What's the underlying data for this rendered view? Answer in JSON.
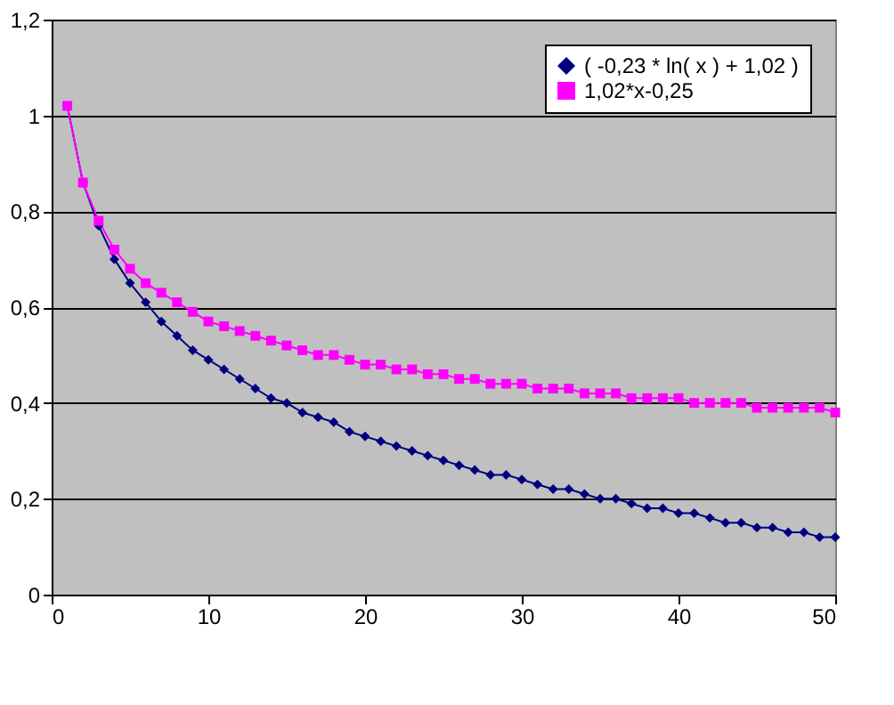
{
  "chart_data": {
    "type": "line",
    "x": [
      1,
      2,
      3,
      4,
      5,
      6,
      7,
      8,
      9,
      10,
      11,
      12,
      13,
      14,
      15,
      16,
      17,
      18,
      19,
      20,
      21,
      22,
      23,
      24,
      25,
      26,
      27,
      28,
      29,
      30,
      31,
      32,
      33,
      34,
      35,
      36,
      37,
      38,
      39,
      40,
      41,
      42,
      43,
      44,
      45,
      46,
      47,
      48,
      49,
      50
    ],
    "series": [
      {
        "name": "( -0,23 * ln( x ) + 1,02 )",
        "color": "#000080",
        "marker": "diamond",
        "values": [
          1.02,
          0.86,
          0.77,
          0.7,
          0.65,
          0.61,
          0.57,
          0.54,
          0.51,
          0.49,
          0.47,
          0.45,
          0.43,
          0.41,
          0.4,
          0.38,
          0.37,
          0.36,
          0.34,
          0.33,
          0.32,
          0.31,
          0.3,
          0.29,
          0.28,
          0.27,
          0.26,
          0.25,
          0.25,
          0.24,
          0.23,
          0.22,
          0.22,
          0.21,
          0.2,
          0.2,
          0.19,
          0.18,
          0.18,
          0.17,
          0.17,
          0.16,
          0.15,
          0.15,
          0.14,
          0.14,
          0.13,
          0.13,
          0.12,
          0.12
        ]
      },
      {
        "name": "1,02*x-0,25",
        "color": "#ff00ff",
        "marker": "square",
        "values": [
          1.02,
          0.86,
          0.78,
          0.72,
          0.68,
          0.65,
          0.63,
          0.61,
          0.59,
          0.57,
          0.56,
          0.55,
          0.54,
          0.53,
          0.52,
          0.51,
          0.5,
          0.5,
          0.49,
          0.48,
          0.48,
          0.47,
          0.47,
          0.46,
          0.46,
          0.45,
          0.45,
          0.44,
          0.44,
          0.44,
          0.43,
          0.43,
          0.43,
          0.42,
          0.42,
          0.42,
          0.41,
          0.41,
          0.41,
          0.41,
          0.4,
          0.4,
          0.4,
          0.4,
          0.39,
          0.39,
          0.39,
          0.39,
          0.39,
          0.38
        ]
      }
    ],
    "xlim": [
      0,
      50
    ],
    "xticks": [
      0,
      10,
      20,
      30,
      40,
      50
    ],
    "ylim": [
      0,
      1.2
    ],
    "yticks": [
      0,
      {
        "value": 0.2,
        "label": "0,2"
      },
      {
        "value": 0.4,
        "label": "0,4"
      },
      {
        "value": 0.6,
        "label": "0,6"
      },
      {
        "value": 0.8,
        "label": "0,8"
      },
      1,
      {
        "value": 1.2,
        "label": "1,2"
      }
    ],
    "grid": "y",
    "legend": "top right",
    "line_style": "solid"
  }
}
